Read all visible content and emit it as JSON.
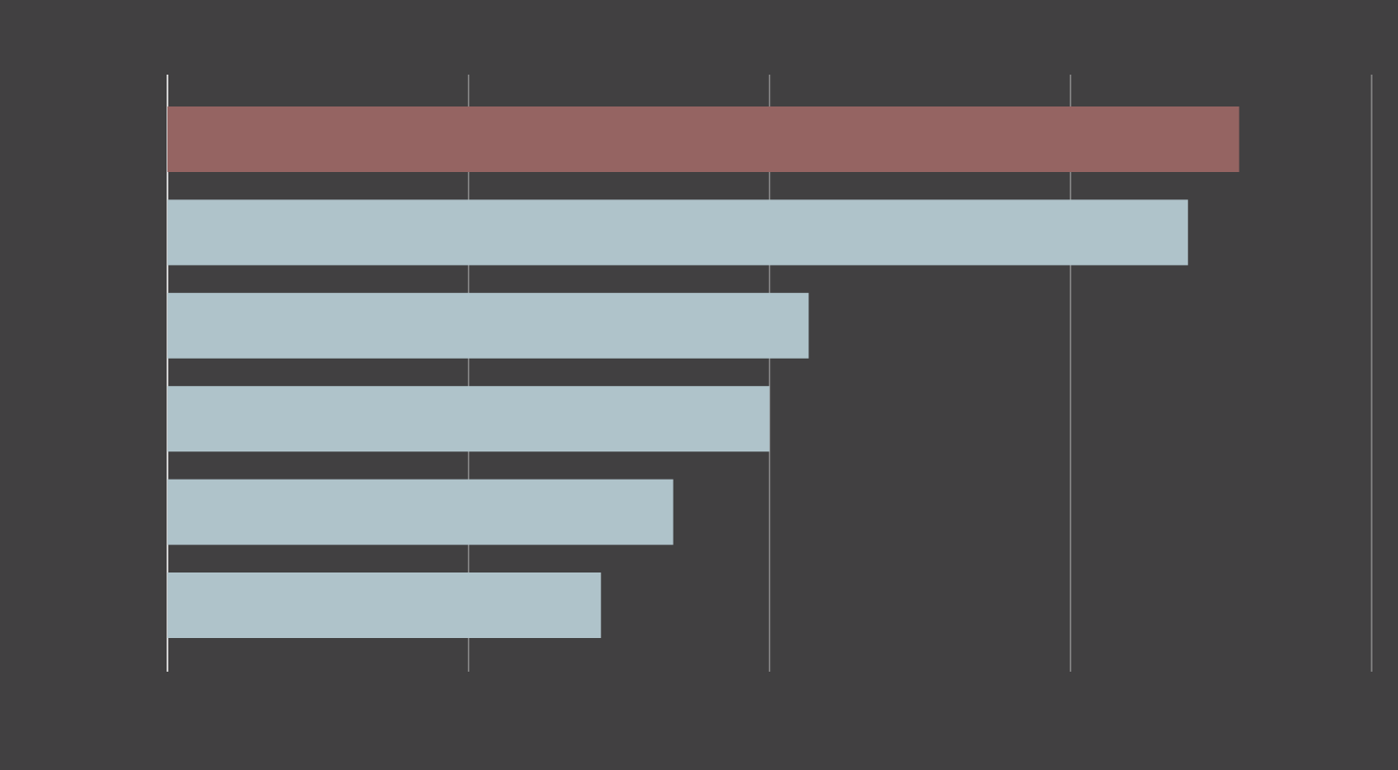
{
  "chart_data": {
    "type": "barh",
    "categories": [
      null,
      null,
      null,
      null,
      null,
      null
    ],
    "values": [
      3.56,
      3.39,
      2.13,
      2.0,
      1.68,
      1.44
    ],
    "colors": [
      "#956462",
      "#afc3ca",
      "#afc3ca",
      "#afc3ca",
      "#afc3ca",
      "#afc3ca"
    ],
    "xlim": [
      0,
      4
    ],
    "xticks": [
      0,
      1,
      2,
      3,
      4
    ],
    "grid": true
  }
}
